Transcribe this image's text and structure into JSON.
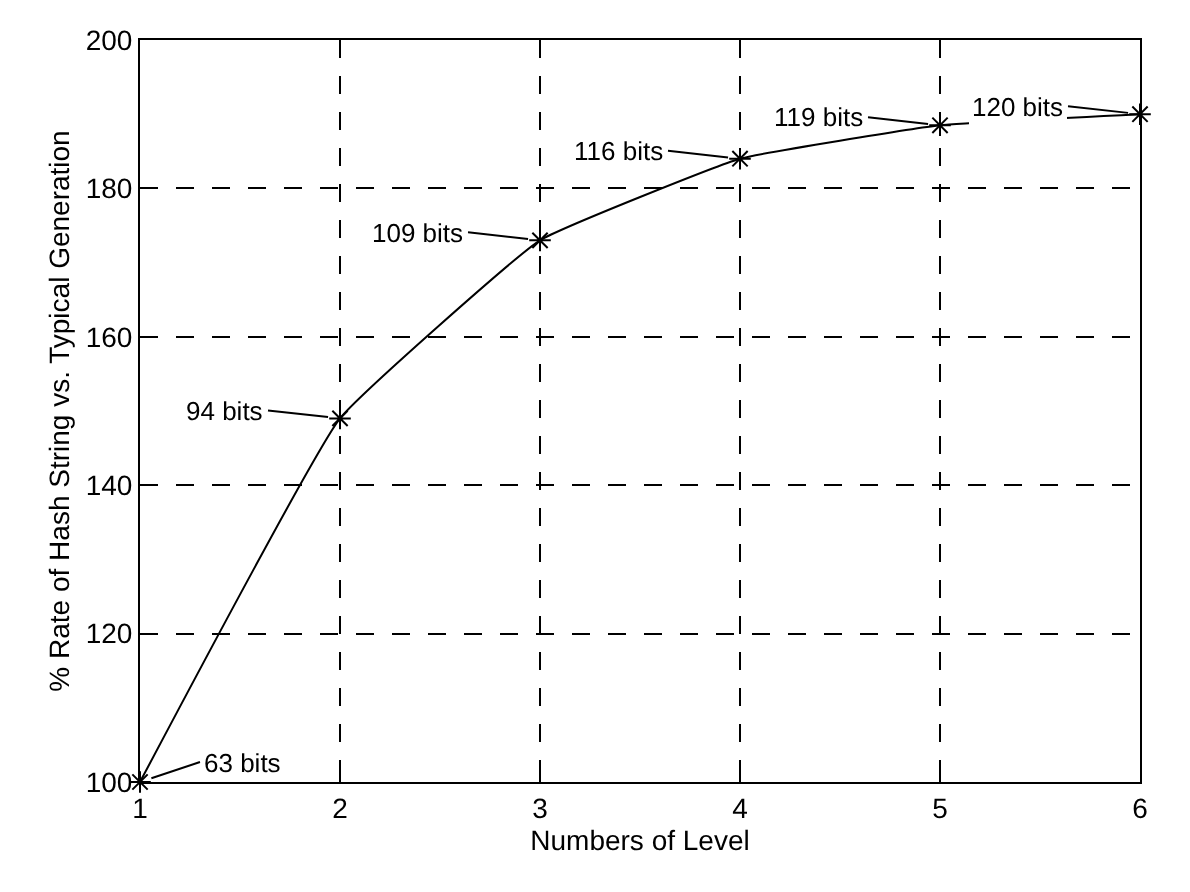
{
  "chart_data": {
    "type": "line",
    "xlabel": "Numbers of Level",
    "ylabel": "% Rate of Hash String vs. Typical Generation",
    "x": [
      1,
      2,
      3,
      4,
      5,
      6
    ],
    "series": [
      {
        "color": "#000000",
        "values": [
          100,
          149,
          173,
          184,
          188.5,
          190
        ]
      }
    ],
    "xlim": [
      1,
      6
    ],
    "xticks": [
      1,
      2,
      3,
      4,
      5,
      6
    ],
    "ylim": [
      100,
      200
    ],
    "yticks": [
      100,
      120,
      140,
      160,
      180,
      200
    ],
    "grid": true,
    "marker": "cross",
    "line_style": "solid",
    "annotations": [
      {
        "text": "63 bits",
        "x": 1,
        "y": 100
      },
      {
        "text": "94 bits",
        "x": 2,
        "y": 149
      },
      {
        "text": "109 bits",
        "x": 3,
        "y": 173
      },
      {
        "text": "116 bits",
        "x": 4,
        "y": 184
      },
      {
        "text": "119 bits",
        "x": 5,
        "y": 188.5
      },
      {
        "text": "120 bits",
        "x": 6,
        "y": 190
      }
    ]
  }
}
